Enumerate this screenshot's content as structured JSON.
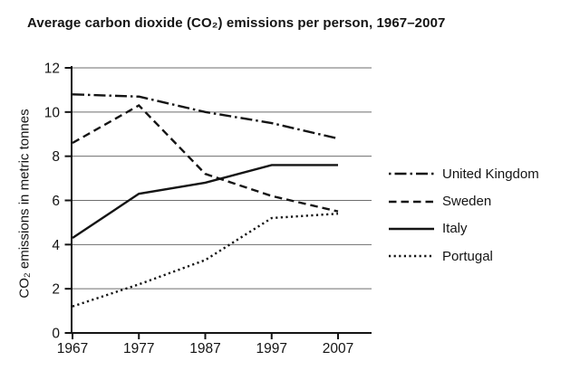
{
  "page": {
    "background": "#ffffff"
  },
  "chart_data": {
    "type": "line",
    "title": "Average carbon dioxide (CO₂) emissions per person, 1967–2007",
    "ylabel": "CO₂ emissions in metric tonnes",
    "xlabel": "",
    "categories": [
      "1967",
      "1977",
      "1987",
      "1997",
      "2007"
    ],
    "ylim": [
      0,
      12
    ],
    "yticks": [
      0,
      2,
      4,
      6,
      8,
      10,
      12
    ],
    "grid": "horizontal-only",
    "legend_position": "right-middle",
    "line_color": "#141414",
    "axis_color": "#141414",
    "gridline_color": "#6e6e6e",
    "series": [
      {
        "name": "United Kingdom",
        "dash": "dashdot",
        "values": [
          10.8,
          10.7,
          10.0,
          9.5,
          8.8
        ]
      },
      {
        "name": "Sweden",
        "dash": "dashed",
        "values": [
          8.6,
          10.3,
          7.2,
          6.2,
          5.5
        ]
      },
      {
        "name": "Italy",
        "dash": "solid",
        "values": [
          4.3,
          6.3,
          6.8,
          7.6,
          7.6
        ]
      },
      {
        "name": "Portugal",
        "dash": "dotted",
        "values": [
          1.2,
          2.2,
          3.3,
          5.2,
          5.4
        ]
      }
    ]
  }
}
